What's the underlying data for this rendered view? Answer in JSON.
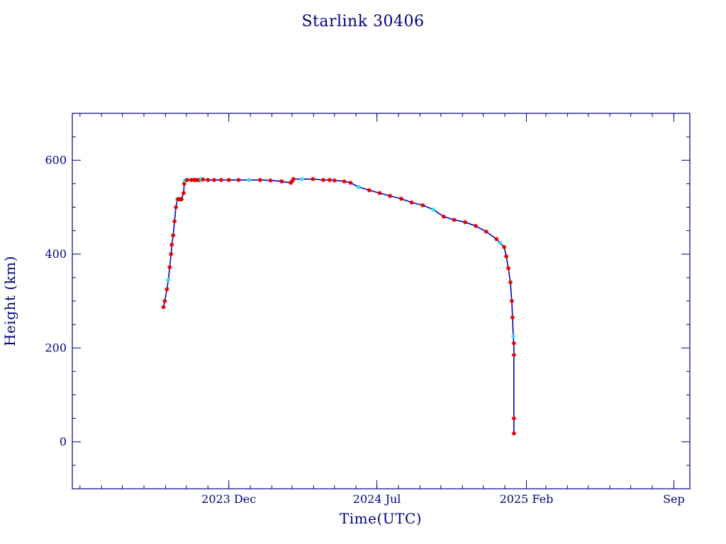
{
  "chart_data": {
    "type": "scatter",
    "title": "Starlink 30406",
    "xlabel": "Time(UTC)",
    "ylabel": "Height (km)",
    "xlim": [
      "2023-04-20",
      "2025-09-24"
    ],
    "ylim": [
      -100,
      700
    ],
    "x_ticks": [
      {
        "label": "2023 Dec",
        "date": "2023-12-01"
      },
      {
        "label": "2024 Jul",
        "date": "2024-07-01"
      },
      {
        "label": "2025 Feb",
        "date": "2025-02-01"
      },
      {
        "label": "Sep",
        "date": "2025-09-01"
      }
    ],
    "y_ticks": [
      {
        "label": "0",
        "value": 0
      },
      {
        "label": "200",
        "value": 200
      },
      {
        "label": "400",
        "value": 400
      },
      {
        "label": "600",
        "value": 600
      }
    ],
    "colors": {
      "axes": "#000080",
      "line": "#0000cd",
      "marker_primary": "#e00000",
      "marker_secondary": "#33dddd"
    },
    "series": [
      {
        "x": [
          "2023-08-29",
          "2023-08-31",
          "2023-09-03",
          "2023-09-05",
          "2023-09-07",
          "2023-09-09",
          "2023-09-10",
          "2023-09-12",
          "2023-09-14",
          "2023-09-16",
          "2023-09-18",
          "2023-09-19",
          "2023-09-21",
          "2023-09-23",
          "2023-09-24",
          "2023-09-27",
          "2023-09-28",
          "2023-09-29",
          "2023-10-02",
          "2023-10-08",
          "2023-10-12",
          "2023-10-15",
          "2023-10-19",
          "2023-10-20",
          "2023-10-22",
          "2023-10-25",
          "2023-11-01",
          "2023-11-10",
          "2023-11-20",
          "2023-12-01",
          "2023-12-15",
          "2023-12-30",
          "2024-01-15",
          "2024-01-30",
          "2024-02-15",
          "2024-02-28",
          "2024-03-01",
          "2024-03-03",
          "2024-03-15",
          "2024-03-31",
          "2024-04-15",
          "2024-04-24",
          "2024-05-01",
          "2024-05-15",
          "2024-05-24",
          "2024-06-05",
          "2024-06-20",
          "2024-07-05",
          "2024-07-20",
          "2024-08-05",
          "2024-08-20",
          "2024-09-05",
          "2024-09-20",
          "2024-10-05",
          "2024-10-20",
          "2024-11-05",
          "2024-11-20",
          "2024-12-05",
          "2024-12-20",
          "2024-12-25",
          "2024-12-31",
          "2025-01-03",
          "2025-01-06",
          "2025-01-09",
          "2025-01-11",
          "2025-01-12",
          "2025-01-13",
          "2025-01-14",
          "2025-01-14",
          "2025-01-14",
          "2025-01-14"
        ],
        "y": [
          287,
          300,
          325,
          345,
          372,
          400,
          420,
          440,
          470,
          500,
          516,
          517,
          517,
          517,
          517,
          530,
          550,
          557,
          558,
          558,
          558,
          558,
          558,
          558,
          559,
          559,
          558,
          558,
          558,
          558,
          558,
          558,
          558,
          557,
          555,
          552,
          555,
          560,
          560,
          560,
          558,
          558,
          557,
          555,
          552,
          543,
          536,
          530,
          524,
          518,
          510,
          504,
          495,
          480,
          473,
          468,
          460,
          448,
          432,
          424,
          415,
          395,
          370,
          340,
          300,
          265,
          225,
          210,
          185,
          50,
          18
        ]
      }
    ]
  }
}
